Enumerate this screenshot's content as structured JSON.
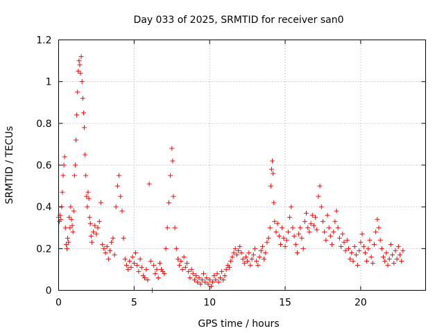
{
  "chart_data": {
    "type": "scatter",
    "title": "Day 033 of 2025, SRMTID for receiver san0",
    "xlabel": "GPS time / hours",
    "ylabel": "SRMTID / TECUs",
    "xlim": [
      0,
      24.3
    ],
    "ylim": [
      0,
      1.2
    ],
    "xticks": [
      0,
      5,
      10,
      15,
      20
    ],
    "xtick_labels": [
      "0",
      "5",
      "10",
      "15",
      "20"
    ],
    "yticks": [
      0,
      0.2,
      0.4,
      0.6,
      0.8,
      1.0,
      1.2
    ],
    "ytick_labels": [
      "0",
      "0.2",
      "0.4",
      "0.6",
      "0.8",
      "1",
      "1.2"
    ],
    "grid": true,
    "marker": "+",
    "series": [
      {
        "name": "SRMTID",
        "color": "#ff0000",
        "points": [
          [
            0.0,
            0.35
          ],
          [
            0.05,
            0.33
          ],
          [
            0.1,
            0.36
          ],
          [
            0.15,
            0.34
          ],
          [
            0.2,
            0.4
          ],
          [
            0.25,
            0.47
          ],
          [
            0.3,
            0.55
          ],
          [
            0.35,
            0.6
          ],
          [
            0.4,
            0.64
          ],
          [
            0.45,
            0.3
          ],
          [
            0.5,
            0.22
          ],
          [
            0.55,
            0.2
          ],
          [
            0.6,
            0.25
          ],
          [
            0.65,
            0.23
          ],
          [
            0.7,
            0.35
          ],
          [
            0.75,
            0.3
          ],
          [
            0.8,
            0.4
          ],
          [
            0.85,
            0.34
          ],
          [
            0.9,
            0.31
          ],
          [
            0.95,
            0.28
          ],
          [
            1.0,
            0.38
          ],
          [
            1.05,
            0.55
          ],
          [
            1.1,
            0.6
          ],
          [
            1.15,
            0.72
          ],
          [
            1.2,
            0.84
          ],
          [
            1.25,
            0.95
          ],
          [
            1.3,
            1.05
          ],
          [
            1.35,
            1.1
          ],
          [
            1.4,
            1.08
          ],
          [
            1.45,
            1.04
          ],
          [
            1.5,
            1.12
          ],
          [
            1.55,
            1.0
          ],
          [
            1.6,
            0.92
          ],
          [
            1.65,
            0.85
          ],
          [
            1.7,
            0.78
          ],
          [
            1.75,
            0.65
          ],
          [
            1.8,
            0.55
          ],
          [
            1.85,
            0.45
          ],
          [
            1.9,
            0.4
          ],
          [
            1.95,
            0.47
          ],
          [
            2.0,
            0.44
          ],
          [
            2.05,
            0.35
          ],
          [
            2.1,
            0.32
          ],
          [
            2.15,
            0.26
          ],
          [
            2.2,
            0.23
          ],
          [
            2.3,
            0.28
          ],
          [
            2.4,
            0.31
          ],
          [
            2.5,
            0.27
          ],
          [
            2.6,
            0.3
          ],
          [
            2.7,
            0.33
          ],
          [
            2.8,
            0.42
          ],
          [
            2.9,
            0.22
          ],
          [
            3.0,
            0.2
          ],
          [
            3.1,
            0.18
          ],
          [
            3.2,
            0.21
          ],
          [
            3.3,
            0.15
          ],
          [
            3.4,
            0.19
          ],
          [
            3.5,
            0.23
          ],
          [
            3.6,
            0.25
          ],
          [
            3.7,
            0.17
          ],
          [
            3.8,
            0.4
          ],
          [
            3.9,
            0.5
          ],
          [
            4.0,
            0.55
          ],
          [
            4.1,
            0.45
          ],
          [
            4.2,
            0.38
          ],
          [
            4.3,
            0.25
          ],
          [
            4.4,
            0.15
          ],
          [
            4.5,
            0.12
          ],
          [
            4.6,
            0.1
          ],
          [
            4.7,
            0.14
          ],
          [
            4.8,
            0.11
          ],
          [
            4.9,
            0.16
          ],
          [
            5.0,
            0.13
          ],
          [
            5.1,
            0.18
          ],
          [
            5.2,
            0.12
          ],
          [
            5.3,
            0.09
          ],
          [
            5.4,
            0.15
          ],
          [
            5.5,
            0.11
          ],
          [
            5.6,
            0.07
          ],
          [
            5.7,
            0.06
          ],
          [
            5.8,
            0.1
          ],
          [
            5.9,
            0.05
          ],
          [
            6.0,
            0.51
          ],
          [
            6.1,
            0.14
          ],
          [
            6.2,
            0.0
          ],
          [
            6.3,
            0.12
          ],
          [
            6.4,
            0.08
          ],
          [
            6.5,
            0.1
          ],
          [
            6.6,
            0.06
          ],
          [
            6.7,
            0.13
          ],
          [
            6.8,
            0.1
          ],
          [
            6.9,
            0.09
          ],
          [
            7.0,
            0.08
          ],
          [
            7.1,
            0.2
          ],
          [
            7.2,
            0.3
          ],
          [
            7.3,
            0.42
          ],
          [
            7.4,
            0.55
          ],
          [
            7.5,
            0.68
          ],
          [
            7.55,
            0.62
          ],
          [
            7.6,
            0.45
          ],
          [
            7.7,
            0.3
          ],
          [
            7.8,
            0.2
          ],
          [
            7.9,
            0.15
          ],
          [
            8.0,
            0.12
          ],
          [
            8.1,
            0.14
          ],
          [
            8.2,
            0.1
          ],
          [
            8.3,
            0.16
          ],
          [
            8.4,
            0.11
          ],
          [
            8.5,
            0.13
          ],
          [
            8.6,
            0.09
          ],
          [
            8.7,
            0.06
          ],
          [
            8.8,
            0.1
          ],
          [
            8.9,
            0.08
          ],
          [
            9.0,
            0.05
          ],
          [
            9.1,
            0.07
          ],
          [
            9.2,
            0.04
          ],
          [
            9.3,
            0.06
          ],
          [
            9.4,
            0.03
          ],
          [
            9.5,
            0.05
          ],
          [
            9.6,
            0.08
          ],
          [
            9.7,
            0.04
          ],
          [
            9.8,
            0.06
          ],
          [
            9.9,
            0.03
          ],
          [
            10.0,
            0.05
          ],
          [
            10.1,
            0.02
          ],
          [
            10.2,
            0.04
          ],
          [
            10.3,
            0.07
          ],
          [
            10.4,
            0.05
          ],
          [
            10.5,
            0.08
          ],
          [
            10.6,
            0.04
          ],
          [
            10.7,
            0.06
          ],
          [
            10.8,
            0.09
          ],
          [
            10.9,
            0.05
          ],
          [
            11.0,
            0.07
          ],
          [
            11.1,
            0.1
          ],
          [
            11.2,
            0.12
          ],
          [
            11.3,
            0.11
          ],
          [
            11.4,
            0.14
          ],
          [
            11.5,
            0.16
          ],
          [
            11.6,
            0.18
          ],
          [
            11.7,
            0.2
          ],
          [
            11.8,
            0.17
          ],
          [
            11.9,
            0.19
          ],
          [
            12.0,
            0.21
          ],
          [
            12.1,
            0.18
          ],
          [
            12.2,
            0.15
          ],
          [
            12.3,
            0.13
          ],
          [
            12.4,
            0.16
          ],
          [
            12.5,
            0.14
          ],
          [
            12.6,
            0.18
          ],
          [
            12.7,
            0.12
          ],
          [
            12.8,
            0.15
          ],
          [
            12.9,
            0.17
          ],
          [
            13.0,
            0.2
          ],
          [
            13.1,
            0.14
          ],
          [
            13.2,
            0.12
          ],
          [
            13.3,
            0.16
          ],
          [
            13.4,
            0.19
          ],
          [
            13.5,
            0.21
          ],
          [
            13.6,
            0.15
          ],
          [
            13.7,
            0.18
          ],
          [
            13.8,
            0.23
          ],
          [
            13.9,
            0.25
          ],
          [
            14.0,
            0.3
          ],
          [
            14.05,
            0.5
          ],
          [
            14.1,
            0.58
          ],
          [
            14.15,
            0.62
          ],
          [
            14.2,
            0.56
          ],
          [
            14.25,
            0.42
          ],
          [
            14.3,
            0.33
          ],
          [
            14.4,
            0.28
          ],
          [
            14.5,
            0.32
          ],
          [
            14.6,
            0.26
          ],
          [
            14.7,
            0.22
          ],
          [
            14.8,
            0.3
          ],
          [
            14.9,
            0.25
          ],
          [
            15.0,
            0.21
          ],
          [
            15.1,
            0.24
          ],
          [
            15.2,
            0.28
          ],
          [
            15.3,
            0.35
          ],
          [
            15.4,
            0.4
          ],
          [
            15.5,
            0.3
          ],
          [
            15.6,
            0.26
          ],
          [
            15.7,
            0.22
          ],
          [
            15.8,
            0.18
          ],
          [
            15.9,
            0.27
          ],
          [
            16.0,
            0.3
          ],
          [
            16.1,
            0.25
          ],
          [
            16.2,
            0.2
          ],
          [
            16.3,
            0.33
          ],
          [
            16.4,
            0.37
          ],
          [
            16.5,
            0.3
          ],
          [
            16.6,
            0.28
          ],
          [
            16.7,
            0.32
          ],
          [
            16.8,
            0.36
          ],
          [
            16.9,
            0.31
          ],
          [
            17.0,
            0.35
          ],
          [
            17.1,
            0.29
          ],
          [
            17.2,
            0.45
          ],
          [
            17.3,
            0.5
          ],
          [
            17.4,
            0.4
          ],
          [
            17.5,
            0.33
          ],
          [
            17.6,
            0.28
          ],
          [
            17.7,
            0.24
          ],
          [
            17.8,
            0.36
          ],
          [
            17.9,
            0.3
          ],
          [
            18.0,
            0.26
          ],
          [
            18.1,
            0.22
          ],
          [
            18.2,
            0.28
          ],
          [
            18.3,
            0.33
          ],
          [
            18.4,
            0.38
          ],
          [
            18.5,
            0.3
          ],
          [
            18.6,
            0.25
          ],
          [
            18.7,
            0.21
          ],
          [
            18.8,
            0.27
          ],
          [
            18.9,
            0.23
          ],
          [
            19.0,
            0.19
          ],
          [
            19.1,
            0.24
          ],
          [
            19.2,
            0.2
          ],
          [
            19.3,
            0.15
          ],
          [
            19.4,
            0.18
          ],
          [
            19.5,
            0.14
          ],
          [
            19.6,
            0.21
          ],
          [
            19.7,
            0.17
          ],
          [
            19.8,
            0.12
          ],
          [
            19.9,
            0.19
          ],
          [
            20.0,
            0.23
          ],
          [
            20.1,
            0.27
          ],
          [
            20.2,
            0.21
          ],
          [
            20.3,
            0.18
          ],
          [
            20.4,
            0.14
          ],
          [
            20.5,
            0.2
          ],
          [
            20.6,
            0.24
          ],
          [
            20.7,
            0.16
          ],
          [
            20.8,
            0.13
          ],
          [
            20.9,
            0.22
          ],
          [
            21.0,
            0.28
          ],
          [
            21.1,
            0.34
          ],
          [
            21.2,
            0.3
          ],
          [
            21.3,
            0.24
          ],
          [
            21.4,
            0.2
          ],
          [
            21.5,
            0.16
          ],
          [
            21.6,
            0.14
          ],
          [
            21.7,
            0.18
          ],
          [
            21.8,
            0.12
          ],
          [
            21.9,
            0.15
          ],
          [
            22.0,
            0.22
          ],
          [
            22.1,
            0.17
          ],
          [
            22.2,
            0.13
          ],
          [
            22.3,
            0.19
          ],
          [
            22.4,
            0.15
          ],
          [
            22.5,
            0.21
          ],
          [
            22.6,
            0.17
          ],
          [
            22.7,
            0.14
          ],
          [
            22.8,
            0.19
          ]
        ]
      }
    ]
  }
}
